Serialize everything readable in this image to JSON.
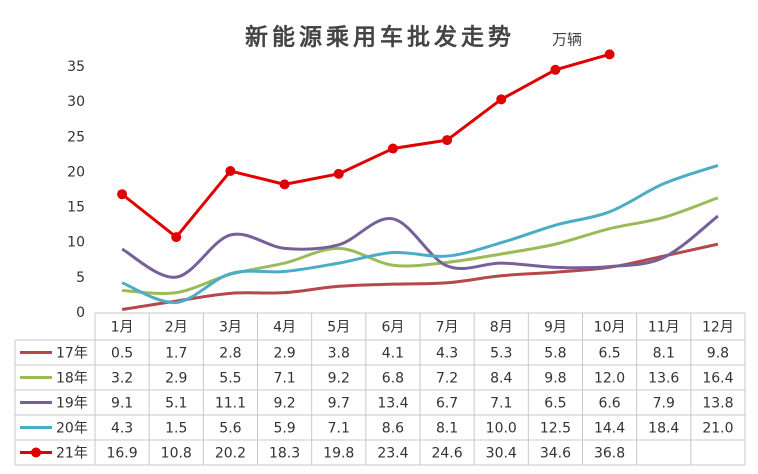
{
  "chart_data": {
    "type": "line",
    "title": "新能源乘用车批发走势",
    "unit_label": "万辆",
    "categories": [
      "1月",
      "2月",
      "3月",
      "4月",
      "5月",
      "6月",
      "7月",
      "8月",
      "9月",
      "10月",
      "11月",
      "12月"
    ],
    "ylim": [
      0,
      38
    ],
    "yticks": [
      0,
      5,
      10,
      15,
      20,
      25,
      30,
      35
    ],
    "grid": false,
    "series": [
      {
        "name": "17年",
        "color": "#b5484a",
        "smooth": true,
        "markers": false,
        "values": [
          0.5,
          1.7,
          2.8,
          2.9,
          3.8,
          4.1,
          4.3,
          5.3,
          5.8,
          6.5,
          8.1,
          9.8
        ],
        "value_labels": [
          "0.5",
          "1.7",
          "2.8",
          "2.9",
          "3.8",
          "4.1",
          "4.3",
          "5.3",
          "5.8",
          "6.5",
          "8.1",
          "9.8"
        ]
      },
      {
        "name": "18年",
        "color": "#9bbb59",
        "smooth": true,
        "markers": false,
        "values": [
          3.2,
          2.9,
          5.5,
          7.1,
          9.2,
          6.8,
          7.2,
          8.4,
          9.8,
          12.0,
          13.6,
          16.4
        ],
        "value_labels": [
          "3.2",
          "2.9",
          "5.5",
          "7.1",
          "9.2",
          "6.8",
          "7.2",
          "8.4",
          "9.8",
          "12.0",
          "13.6",
          "16.4"
        ]
      },
      {
        "name": "19年",
        "color": "#76609a",
        "smooth": true,
        "markers": false,
        "values": [
          9.1,
          5.1,
          11.1,
          9.2,
          9.7,
          13.4,
          6.7,
          7.1,
          6.5,
          6.6,
          7.9,
          13.8
        ],
        "value_labels": [
          "9.1",
          "5.1",
          "11.1",
          "9.2",
          "9.7",
          "13.4",
          "6.7",
          "7.1",
          "6.5",
          "6.6",
          "7.9",
          "13.8"
        ]
      },
      {
        "name": "20年",
        "color": "#4bacc6",
        "smooth": true,
        "markers": false,
        "values": [
          4.3,
          1.5,
          5.6,
          5.9,
          7.1,
          8.6,
          8.1,
          10.0,
          12.5,
          14.4,
          18.4,
          21.0
        ],
        "value_labels": [
          "4.3",
          "1.5",
          "5.6",
          "5.9",
          "7.1",
          "8.6",
          "8.1",
          "10.0",
          "12.5",
          "14.4",
          "18.4",
          "21.0"
        ]
      },
      {
        "name": "21年",
        "color": "#e00000",
        "smooth": false,
        "markers": true,
        "values": [
          16.9,
          10.8,
          20.2,
          18.3,
          19.8,
          23.4,
          24.6,
          30.4,
          34.6,
          36.8,
          null,
          null
        ],
        "value_labels": [
          "16.9",
          "10.8",
          "20.2",
          "18.3",
          "19.8",
          "23.4",
          "24.6",
          "30.4",
          "34.6",
          "36.8",
          null,
          null
        ]
      }
    ]
  }
}
